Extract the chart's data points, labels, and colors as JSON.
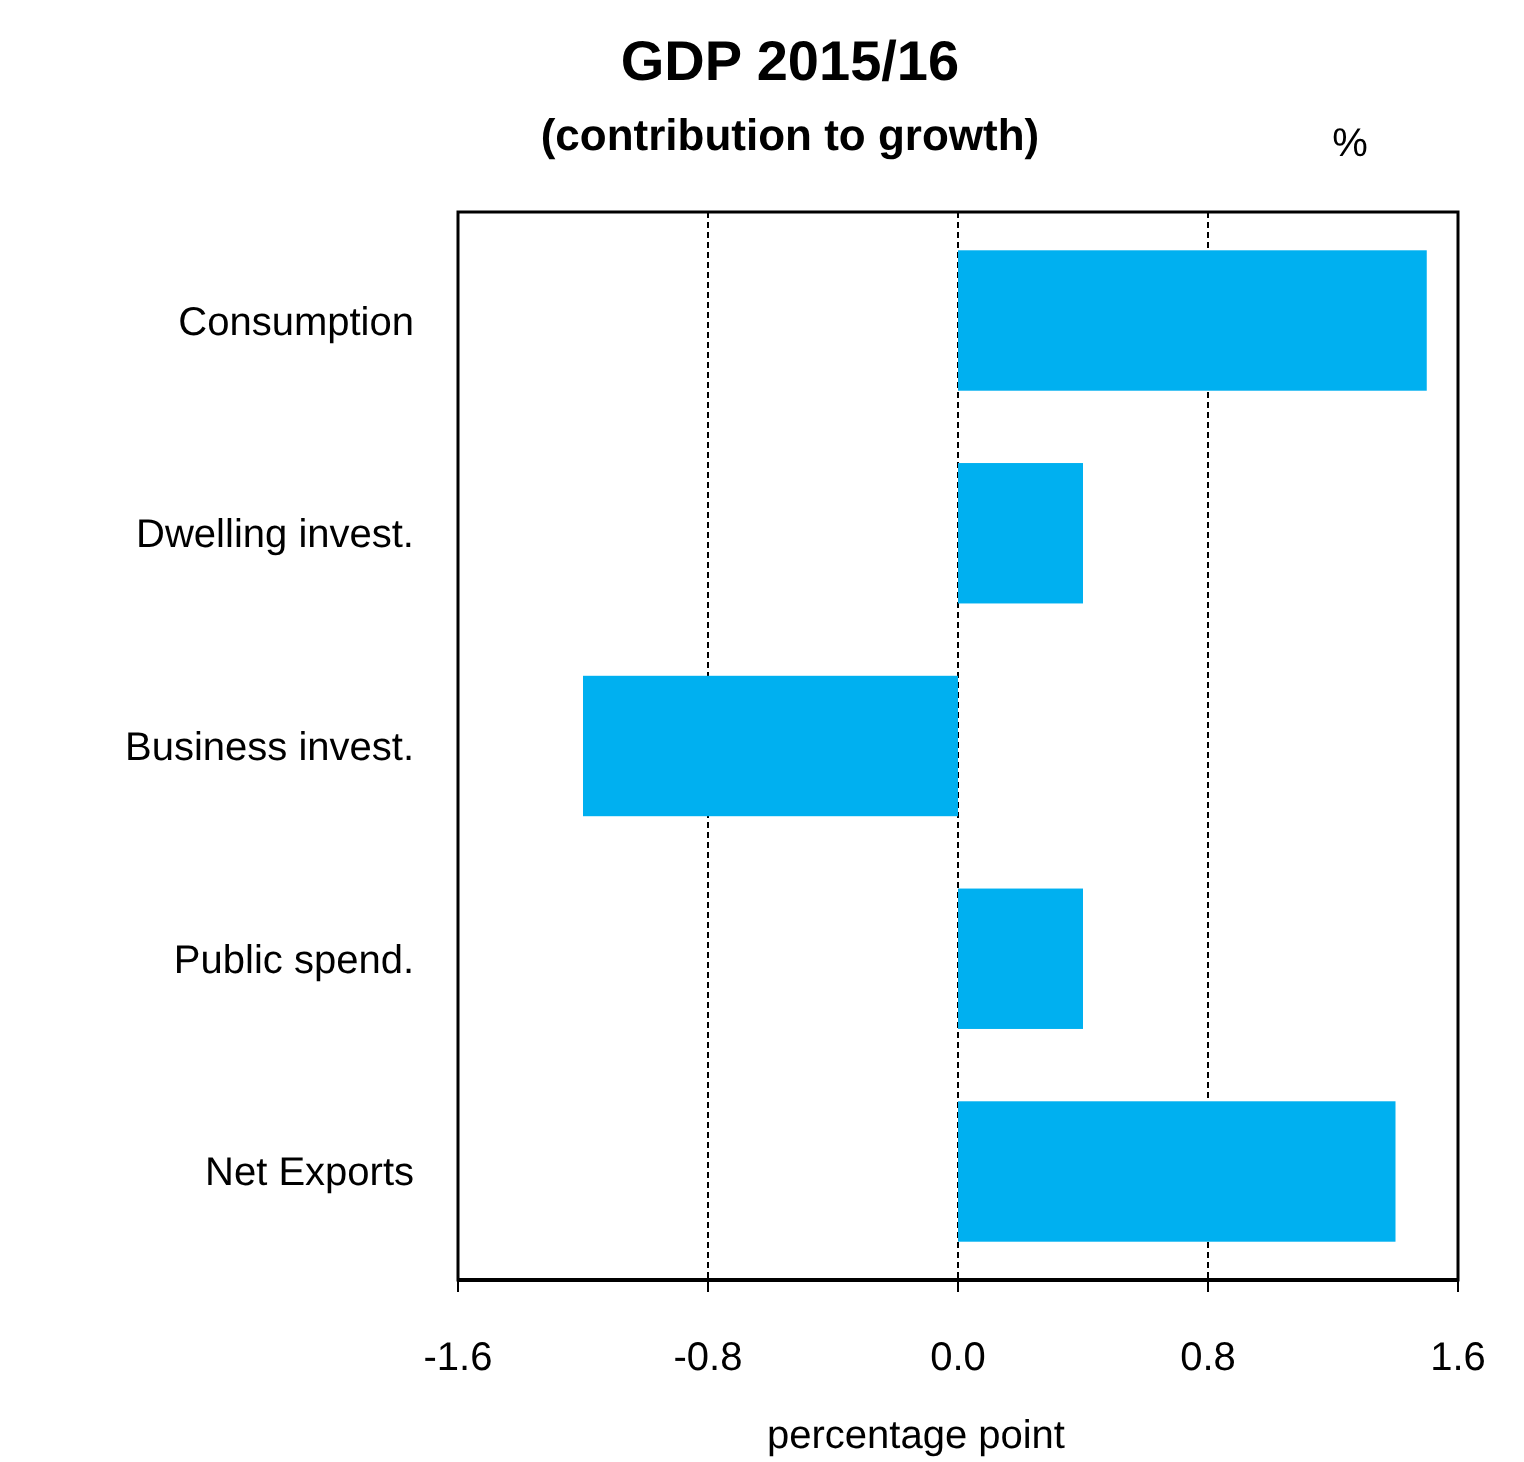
{
  "chart_data": {
    "type": "bar",
    "orientation": "horizontal",
    "title": "GDP 2015/16",
    "subtitle": "(contribution to growth)",
    "xlabel": "percentage point",
    "annotations": [
      "%"
    ],
    "categories": [
      "Consumption",
      "Dwelling invest.",
      "Business invest.",
      "Public spend.",
      "Net Exports"
    ],
    "values": [
      1.5,
      0.4,
      -1.2,
      0.4,
      1.4
    ],
    "color": "#00b0f0",
    "xlim": [
      -1.6,
      1.6
    ],
    "xticks": [
      {
        "value": -1.6,
        "label": "-1.6"
      },
      {
        "value": -0.8,
        "label": "-0.8"
      },
      {
        "value": 0,
        "label": "0.0"
      },
      {
        "value": 0.8,
        "label": "0.8"
      },
      {
        "value": 1.6,
        "label": "1.6"
      }
    ],
    "grid": "x"
  }
}
